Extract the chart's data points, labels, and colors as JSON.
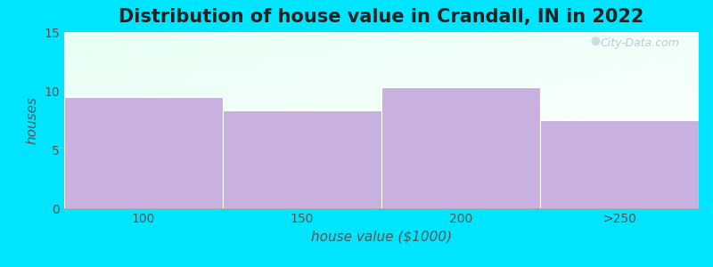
{
  "title": "Distribution of house value in Crandall, IN in 2022",
  "xlabel": "house value ($1000)",
  "ylabel": "houses",
  "categories": [
    "100",
    "150",
    "200",
    ">250"
  ],
  "values": [
    9.5,
    8.3,
    10.3,
    7.5
  ],
  "bar_color": "#c8b0e0",
  "ylim": [
    0,
    15
  ],
  "yticks": [
    0,
    5,
    10,
    15
  ],
  "figure_bg_color": "#00e5ff",
  "title_fontsize": 15,
  "label_fontsize": 11,
  "tick_fontsize": 10,
  "watermark_text": "City-Data.com",
  "bar_width": 1.0
}
